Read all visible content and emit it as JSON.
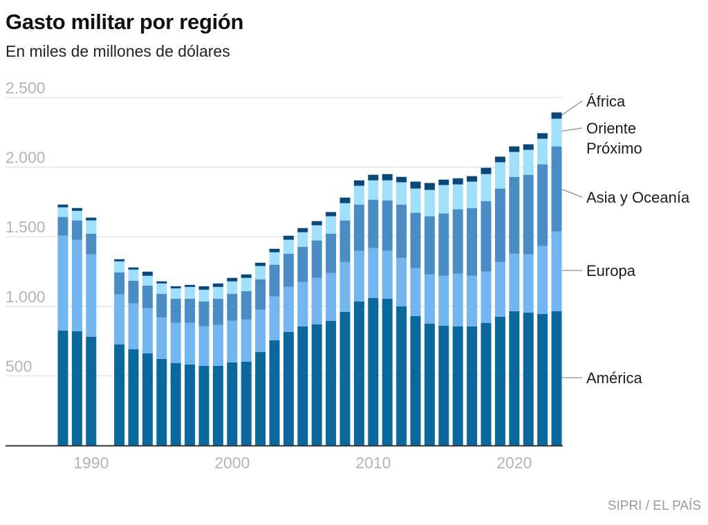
{
  "header": {
    "title": "Gasto militar por región",
    "subtitle": "En miles de millones de dólares"
  },
  "footer": {
    "source": "SIPRI / EL PAÍS"
  },
  "chart_data": {
    "type": "bar",
    "stacked": true,
    "title": "Gasto militar por región",
    "subtitle": "En miles de millones de dólares",
    "xlabel": "",
    "ylabel": "",
    "ylim": [
      0,
      2500
    ],
    "grid": true,
    "legend_placement": "right (direct labels)",
    "yticks": [
      500,
      1000,
      1500,
      2000,
      2500
    ],
    "ytick_labels": [
      "500",
      "1.000",
      "1.500",
      "2.000",
      "2.500"
    ],
    "xticks": [
      1990,
      2000,
      2010,
      2020
    ],
    "xtick_labels": [
      "1990",
      "2000",
      "2010",
      "2020"
    ],
    "categories": [
      1988,
      1989,
      1990,
      1992,
      1993,
      1994,
      1995,
      1996,
      1997,
      1998,
      1999,
      2000,
      2001,
      2002,
      2003,
      2004,
      2005,
      2006,
      2007,
      2008,
      2009,
      2010,
      2011,
      2012,
      2013,
      2014,
      2015,
      2016,
      2017,
      2018,
      2019,
      2020,
      2021,
      2022,
      2023
    ],
    "series": [
      {
        "name": "América",
        "color": "#0b689c",
        "values": [
          826,
          821,
          781,
          726,
          692,
          662,
          622,
          592,
          582,
          572,
          572,
          597,
          602,
          672,
          756,
          816,
          856,
          871,
          896,
          960,
          1035,
          1060,
          1055,
          1000,
          930,
          876,
          861,
          856,
          856,
          881,
          925,
          965,
          955,
          945,
          965
        ]
      },
      {
        "name": "Europa",
        "color": "#72b5ef",
        "values": [
          681,
          657,
          592,
          359,
          328,
          323,
          298,
          289,
          299,
          284,
          294,
          299,
          303,
          303,
          314,
          323,
          318,
          333,
          343,
          358,
          363,
          358,
          343,
          348,
          344,
          353,
          358,
          378,
          363,
          368,
          393,
          413,
          418,
          488,
          572
        ]
      },
      {
        "name": "Asia y Oceanía",
        "color": "#4a8dc4",
        "values": [
          135,
          139,
          149,
          159,
          164,
          164,
          170,
          174,
          174,
          179,
          189,
          194,
          204,
          219,
          229,
          239,
          254,
          269,
          283,
          299,
          333,
          348,
          363,
          383,
          398,
          418,
          448,
          463,
          487,
          507,
          528,
          552,
          572,
          587,
          612
        ]
      },
      {
        "name": "Oriente Próximo",
        "color": "#a0e0fc",
        "values": [
          69,
          69,
          95,
          79,
          80,
          70,
          74,
          74,
          84,
          84,
          84,
          89,
          95,
          95,
          89,
          100,
          104,
          109,
          125,
          124,
          135,
          139,
          144,
          160,
          174,
          189,
          204,
          179,
          190,
          194,
          189,
          179,
          179,
          184,
          199
        ]
      },
      {
        "name": "África",
        "color": "#0b4879",
        "values": [
          20,
          20,
          20,
          15,
          15,
          30,
          15,
          15,
          15,
          25,
          25,
          25,
          25,
          24,
          25,
          29,
          30,
          30,
          30,
          40,
          39,
          40,
          45,
          39,
          50,
          50,
          39,
          44,
          39,
          45,
          40,
          40,
          40,
          40,
          45
        ]
      }
    ],
    "series_labels": [
      {
        "series": "África",
        "lines": [
          "África"
        ]
      },
      {
        "series": "Oriente Próximo",
        "lines": [
          "Oriente",
          "Próximo"
        ]
      },
      {
        "series": "Asia y Oceanía",
        "lines": [
          "Asia y Oceanía"
        ]
      },
      {
        "series": "Europa",
        "lines": [
          "Europa"
        ]
      },
      {
        "series": "América",
        "lines": [
          "América"
        ]
      }
    ],
    "colors": {
      "gridline": "#e6e6e6",
      "axis": "#333333",
      "tick_text": "#b4b4b4",
      "leader": "#8c8c8c"
    }
  }
}
